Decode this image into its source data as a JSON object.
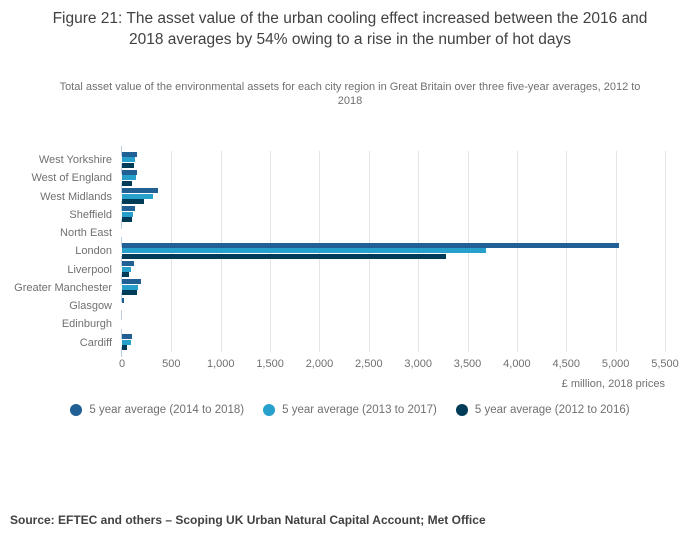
{
  "figure": {
    "title": "Figure 21: The asset value of the urban cooling effect increased between the 2016 and 2018 averages by 54% owing to a rise in the number of hot days",
    "subtitle": "Total asset value of the environmental assets for each city region in Great Britain over three five-year averages, 2012 to 2018",
    "source": "Source: EFTEC and others – Scoping UK Urban Natural Capital Account; Met Office"
  },
  "colors": {
    "title_text": "#414042",
    "secondary_text": "#707071",
    "gridline": "#e3e3e8",
    "axis_tick": "#bccfe3",
    "series_blue": "#206095",
    "series_light_blue": "#27A0CC",
    "series_navy": "#003C57"
  },
  "chart_data": {
    "type": "bar",
    "orientation": "horizontal",
    "title": "Figure 21: The asset value of the urban cooling effect increased between the 2016 and 2018 averages by 54% owing to a rise in the number of hot days",
    "subtitle": "Total asset value of the environmental assets for each city region in Great Britain over three five-year averages, 2012 to 2018",
    "categories": [
      "West Yorkshire",
      "West of England",
      "West Midlands",
      "Sheffield",
      "North East",
      "London",
      "Liverpool",
      "Greater Manchester",
      "Glasgow",
      "Edinburgh",
      "Cardiff"
    ],
    "series": [
      {
        "name": "5 year average (2014 to 2018)",
        "color": "#206095",
        "values": [
          155,
          155,
          360,
          130,
          0,
          5035,
          125,
          195,
          25,
          0,
          105
        ]
      },
      {
        "name": "5 year average (2013 to 2017)",
        "color": "#27A0CC",
        "values": [
          135,
          140,
          315,
          110,
          0,
          3685,
          90,
          165,
          0,
          0,
          90
        ]
      },
      {
        "name": "5 year average (2012 to 2016)",
        "color": "#003C57",
        "values": [
          120,
          105,
          225,
          100,
          0,
          3280,
          70,
          150,
          0,
          0,
          50
        ]
      }
    ],
    "xlabel": "£ million, 2018 prices",
    "ylabel": "",
    "xlim": [
      0,
      5500
    ],
    "x_ticks": [
      {
        "v": 0,
        "label": "0"
      },
      {
        "v": 500,
        "label": "500"
      },
      {
        "v": 1000,
        "label": "1,000"
      },
      {
        "v": 1500,
        "label": "1,500"
      },
      {
        "v": 2000,
        "label": "2,000"
      },
      {
        "v": 2500,
        "label": "2,500"
      },
      {
        "v": 3000,
        "label": "3,000"
      },
      {
        "v": 3500,
        "label": "3,500"
      },
      {
        "v": 4000,
        "label": "4,000"
      },
      {
        "v": 4500,
        "label": "4,500"
      },
      {
        "v": 5000,
        "label": "5,000"
      },
      {
        "v": 5500,
        "label": "5,500"
      }
    ],
    "grid": "vertical",
    "legend_position": "bottom"
  }
}
